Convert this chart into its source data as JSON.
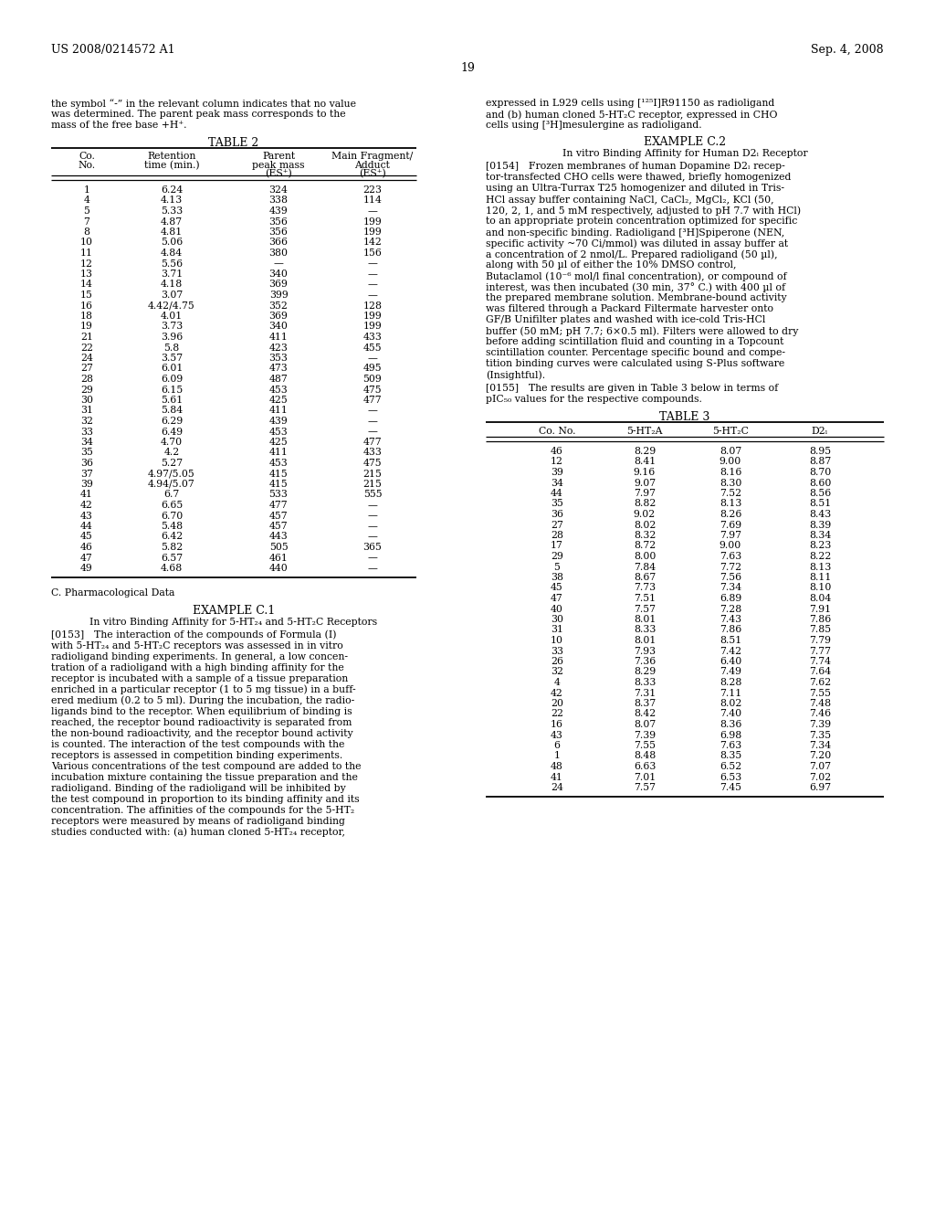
{
  "header_left": "US 2008/0214572 A1",
  "header_right": "Sep. 4, 2008",
  "page_number": "19",
  "intro_left": [
    "the symbol “-” in the relevant column indicates that no value",
    "was determined. The parent peak mass corresponds to the",
    "mass of the free base +H⁺."
  ],
  "intro_right": [
    "expressed in L929 cells using [¹²⁵I]R91150 as radioligand",
    "and (b) human cloned 5-HT₂C receptor, expressed in CHO",
    "cells using [³H]mesulergine as radioligand."
  ],
  "table2_title": "TABLE 2",
  "table2_data": [
    [
      "1",
      "6.24",
      "324",
      "223"
    ],
    [
      "4",
      "4.13",
      "338",
      "114"
    ],
    [
      "5",
      "5.33",
      "439",
      "—"
    ],
    [
      "7",
      "4.87",
      "356",
      "199"
    ],
    [
      "8",
      "4.81",
      "356",
      "199"
    ],
    [
      "10",
      "5.06",
      "366",
      "142"
    ],
    [
      "11",
      "4.84",
      "380",
      "156"
    ],
    [
      "12",
      "5.56",
      "—",
      "—"
    ],
    [
      "13",
      "3.71",
      "340",
      "—"
    ],
    [
      "14",
      "4.18",
      "369",
      "—"
    ],
    [
      "15",
      "3.07",
      "399",
      "—"
    ],
    [
      "16",
      "4.42/4.75",
      "352",
      "128"
    ],
    [
      "18",
      "4.01",
      "369",
      "199"
    ],
    [
      "19",
      "3.73",
      "340",
      "199"
    ],
    [
      "21",
      "3.96",
      "411",
      "433"
    ],
    [
      "22",
      "5.8",
      "423",
      "455"
    ],
    [
      "24",
      "3.57",
      "353",
      "—"
    ],
    [
      "27",
      "6.01",
      "473",
      "495"
    ],
    [
      "28",
      "6.09",
      "487",
      "509"
    ],
    [
      "29",
      "6.15",
      "453",
      "475"
    ],
    [
      "30",
      "5.61",
      "425",
      "477"
    ],
    [
      "31",
      "5.84",
      "411",
      "—"
    ],
    [
      "32",
      "6.29",
      "439",
      "—"
    ],
    [
      "33",
      "6.49",
      "453",
      "—"
    ],
    [
      "34",
      "4.70",
      "425",
      "477"
    ],
    [
      "35",
      "4.2",
      "411",
      "433"
    ],
    [
      "36",
      "5.27",
      "453",
      "475"
    ],
    [
      "37",
      "4.97/5.05",
      "415",
      "215"
    ],
    [
      "39",
      "4.94/5.07",
      "415",
      "215"
    ],
    [
      "41",
      "6.7",
      "533",
      "555"
    ],
    [
      "42",
      "6.65",
      "477",
      "—"
    ],
    [
      "43",
      "6.70",
      "457",
      "—"
    ],
    [
      "44",
      "5.48",
      "457",
      "—"
    ],
    [
      "45",
      "6.42",
      "443",
      "—"
    ],
    [
      "46",
      "5.82",
      "505",
      "365"
    ],
    [
      "47",
      "6.57",
      "461",
      "—"
    ],
    [
      "49",
      "4.68",
      "440",
      "—"
    ]
  ],
  "pharm_label": "C. Pharmacological Data",
  "ex_c1_title": "EXAMPLE C.1",
  "ex_c1_sub": "In vitro Binding Affinity for 5-HT₂₄ and 5-HT₂C Receptors",
  "ex_c1_para": [
    "[0153] The interaction of the compounds of Formula (I)",
    "with 5-HT₂₄ and 5-HT₂C receptors was assessed in in vitro",
    "radioligand binding experiments. In general, a low concen-",
    "tration of a radioligand with a high binding affinity for the",
    "receptor is incubated with a sample of a tissue preparation",
    "enriched in a particular receptor (1 to 5 mg tissue) in a buff-",
    "ered medium (0.2 to 5 ml). During the incubation, the radio-",
    "ligands bind to the receptor. When equilibrium of binding is",
    "reached, the receptor bound radioactivity is separated from",
    "the non-bound radioactivity, and the receptor bound activity",
    "is counted. The interaction of the test compounds with the",
    "receptors is assessed in competition binding experiments.",
    "Various concentrations of the test compound are added to the",
    "incubation mixture containing the tissue preparation and the",
    "radioligand. Binding of the radioligand will be inhibited by",
    "the test compound in proportion to its binding affinity and its",
    "concentration. The affinities of the compounds for the 5-HT₂",
    "receptors were measured by means of radioligand binding",
    "studies conducted with: (a) human cloned 5-HT₂₄ receptor,"
  ],
  "ex_c2_title": "EXAMPLE C.2",
  "ex_c2_sub": "In vitro Binding Affinity for Human D2ₗ Receptor",
  "ex_c2_para": [
    "[0154] Frozen membranes of human Dopamine D2ₗ recep-",
    "tor-transfected CHO cells were thawed, briefly homogenized",
    "using an Ultra-Turrax T25 homogenizer and diluted in Tris-",
    "HCl assay buffer containing NaCl, CaCl₂, MgCl₂, KCl (50,",
    "120, 2, 1, and 5 mM respectively, adjusted to pH 7.7 with HCl)",
    "to an appropriate protein concentration optimized for specific",
    "and non-specific binding. Radioligand [³H]Spiperone (NEN,",
    "specific activity ~70 Ci/mmol) was diluted in assay buffer at",
    "a concentration of 2 nmol/L. Prepared radioligand (50 µl),",
    "along with 50 µl of either the 10% DMSO control,",
    "Butaclamol (10⁻⁶ mol/l final concentration), or compound of",
    "interest, was then incubated (30 min, 37° C.) with 400 µl of",
    "the prepared membrane solution. Membrane-bound activity",
    "was filtered through a Packard Filtermate harvester onto",
    "GF/B Unifilter plates and washed with ice-cold Tris-HCl",
    "buffer (50 mM; pH 7.7; 6×0.5 ml). Filters were allowed to dry",
    "before adding scintillation fluid and counting in a Topcount",
    "scintillation counter. Percentage specific bound and compe-",
    "tition binding curves were calculated using S-Plus software",
    "(Insightful)."
  ],
  "ex_c2_para2": [
    "[0155] The results are given in Table 3 below in terms of",
    "pIC₅₀ values for the respective compounds."
  ],
  "table3_title": "TABLE 3",
  "table3_headers": [
    "Co. No.",
    "5-HT₂A",
    "5-HT₂C",
    "D2ₗ"
  ],
  "table3_data": [
    [
      "46",
      "8.29",
      "8.07",
      "8.95"
    ],
    [
      "12",
      "8.41",
      "9.00",
      "8.87"
    ],
    [
      "39",
      "9.16",
      "8.16",
      "8.70"
    ],
    [
      "34",
      "9.07",
      "8.30",
      "8.60"
    ],
    [
      "44",
      "7.97",
      "7.52",
      "8.56"
    ],
    [
      "35",
      "8.82",
      "8.13",
      "8.51"
    ],
    [
      "36",
      "9.02",
      "8.26",
      "8.43"
    ],
    [
      "27",
      "8.02",
      "7.69",
      "8.39"
    ],
    [
      "28",
      "8.32",
      "7.97",
      "8.34"
    ],
    [
      "17",
      "8.72",
      "9.00",
      "8.23"
    ],
    [
      "29",
      "8.00",
      "7.63",
      "8.22"
    ],
    [
      "5",
      "7.84",
      "7.72",
      "8.13"
    ],
    [
      "38",
      "8.67",
      "7.56",
      "8.11"
    ],
    [
      "45",
      "7.73",
      "7.34",
      "8.10"
    ],
    [
      "47",
      "7.51",
      "6.89",
      "8.04"
    ],
    [
      "40",
      "7.57",
      "7.28",
      "7.91"
    ],
    [
      "30",
      "8.01",
      "7.43",
      "7.86"
    ],
    [
      "31",
      "8.33",
      "7.86",
      "7.85"
    ],
    [
      "10",
      "8.01",
      "8.51",
      "7.79"
    ],
    [
      "33",
      "7.93",
      "7.42",
      "7.77"
    ],
    [
      "26",
      "7.36",
      "6.40",
      "7.74"
    ],
    [
      "32",
      "8.29",
      "7.49",
      "7.64"
    ],
    [
      "4",
      "8.33",
      "8.28",
      "7.62"
    ],
    [
      "42",
      "7.31",
      "7.11",
      "7.55"
    ],
    [
      "20",
      "8.37",
      "8.02",
      "7.48"
    ],
    [
      "22",
      "8.42",
      "7.40",
      "7.46"
    ],
    [
      "16",
      "8.07",
      "8.36",
      "7.39"
    ],
    [
      "43",
      "7.39",
      "6.98",
      "7.35"
    ],
    [
      "6",
      "7.55",
      "7.63",
      "7.34"
    ],
    [
      "1",
      "8.48",
      "8.35",
      "7.20"
    ],
    [
      "48",
      "6.63",
      "6.52",
      "7.07"
    ],
    [
      "41",
      "7.01",
      "6.53",
      "7.02"
    ],
    [
      "24",
      "7.57",
      "7.45",
      "6.97"
    ]
  ]
}
